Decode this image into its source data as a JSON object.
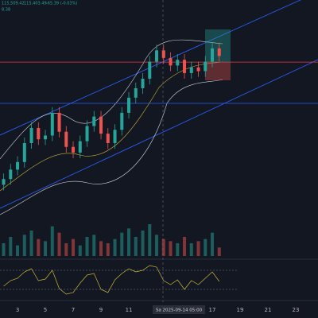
{
  "chart_data": {
    "type": "candlestick",
    "header_values": [
      "115,509.42",
      "115,403.49",
      "-65.39 (-0.03%)"
    ],
    "volume_label": "8.38",
    "cursor_label": "Sa 2025-09-14 05:00",
    "x": [
      2,
      2.5,
      3,
      3.5,
      4,
      4.5,
      5,
      5.5,
      6,
      6.5,
      7,
      7.5,
      8,
      8.5,
      9,
      9.5,
      10,
      10.5,
      11,
      11.5,
      12,
      12.5,
      13,
      13.5,
      14,
      14.5,
      15,
      15.5,
      16,
      16.5,
      17,
      17.5
    ],
    "open": [
      109000,
      109300,
      109800,
      110200,
      111200,
      112000,
      111400,
      111600,
      112800,
      111800,
      111000,
      110700,
      111300,
      112100,
      112600,
      111700,
      111200,
      111900,
      112800,
      113600,
      114100,
      114600,
      115500,
      116100,
      115700,
      115300,
      115600,
      114900,
      115200,
      115000,
      115500,
      116200
    ],
    "high": [
      109600,
      110100,
      110500,
      111500,
      112300,
      112300,
      111900,
      113100,
      113100,
      112100,
      111300,
      111600,
      112400,
      112900,
      112900,
      112000,
      112200,
      113100,
      113900,
      114400,
      114900,
      115800,
      116400,
      116400,
      116000,
      115900,
      115900,
      115500,
      115500,
      115800,
      116500,
      116500
    ],
    "low": [
      108700,
      109000,
      109500,
      109900,
      110900,
      111100,
      111100,
      111300,
      111500,
      110700,
      110400,
      110400,
      111000,
      111800,
      111400,
      110900,
      110900,
      111600,
      112500,
      113300,
      113800,
      114300,
      115200,
      115400,
      115000,
      115000,
      114600,
      114600,
      114700,
      114700,
      115200,
      115500
    ],
    "close": [
      109300,
      109800,
      110200,
      111200,
      112000,
      111400,
      111600,
      112800,
      111800,
      111000,
      110700,
      111300,
      112100,
      112600,
      111700,
      111200,
      111900,
      112800,
      113600,
      114100,
      114600,
      115500,
      116100,
      115700,
      115300,
      115600,
      114900,
      115200,
      115000,
      115500,
      116200,
      115800
    ],
    "volume": [
      30,
      45,
      25,
      50,
      60,
      40,
      35,
      70,
      55,
      30,
      40,
      25,
      45,
      50,
      35,
      30,
      40,
      55,
      65,
      45,
      60,
      75,
      50,
      40,
      35,
      30,
      45,
      30,
      35,
      40,
      55,
      20
    ],
    "rsi": [
      48,
      55,
      58,
      66,
      70,
      55,
      57,
      68,
      45,
      38,
      40,
      52,
      62,
      64,
      44,
      40,
      56,
      64,
      70,
      66,
      68,
      74,
      72,
      55,
      50,
      56,
      44,
      55,
      50,
      58,
      66,
      54
    ],
    "up_color": "#26a69a",
    "down_color": "#ef5350",
    "hlines": [
      {
        "value": 115480,
        "color": "#f23645"
      },
      {
        "value": 113300,
        "color": "#2962ff"
      }
    ],
    "xlim": [
      1.74,
      24.6
    ],
    "ylim": [
      107000,
      117500
    ],
    "xticks": [
      3,
      5,
      7,
      9,
      11,
      17,
      19,
      21,
      23
    ]
  }
}
